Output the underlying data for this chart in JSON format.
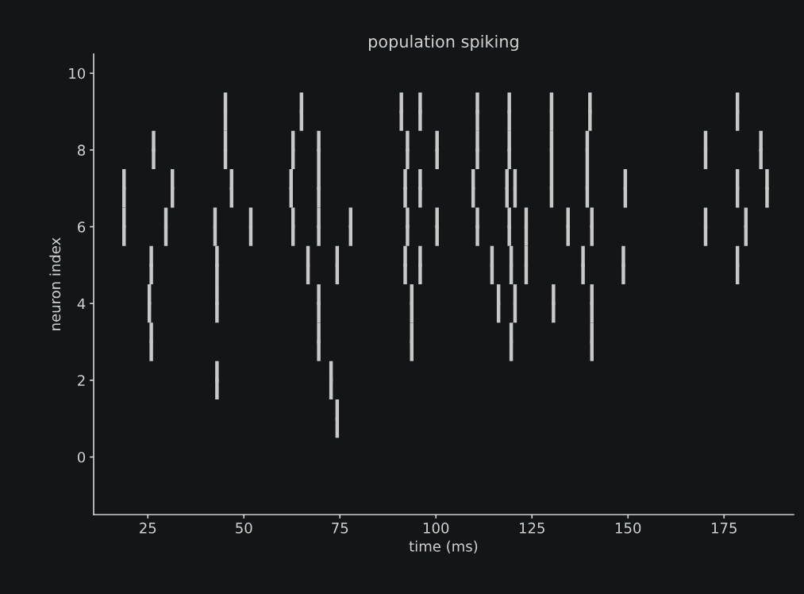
{
  "chart_data": {
    "type": "scatter",
    "title": "population spiking",
    "xlabel": "time (ms)",
    "ylabel": "neuron index",
    "xlim": [
      10.9,
      193.1
    ],
    "xticks": [
      25,
      50,
      75,
      100,
      125,
      150,
      175
    ],
    "ylim": [
      -1.5,
      10.5
    ],
    "yticks": [
      0,
      2,
      4,
      6,
      8,
      10
    ],
    "grid": false,
    "legend": false,
    "marker": "square",
    "series": [
      {
        "color": "#c8c8c8",
        "x": [
          18.8,
          18.8,
          25.4,
          25.9,
          25.9,
          26.5,
          29.7,
          31.4,
          42.5,
          43.0,
          43.0,
          43.0,
          45.2,
          45.2,
          46.8,
          51.8,
          62.3,
          62.8,
          62.8,
          65.0,
          66.7,
          69.5,
          69.5,
          69.5,
          69.5,
          69.5,
          72.7,
          74.3,
          74.3,
          77.8,
          91.0,
          92.0,
          92.0,
          92.6,
          92.6,
          93.7,
          93.7,
          95.9,
          95.9,
          95.9,
          100.3,
          100.3,
          109.7,
          110.8,
          110.8,
          110.8,
          114.6,
          116.3,
          118.5,
          119.1,
          119.1,
          119.1,
          119.6,
          119.6,
          120.6,
          120.6,
          123.5,
          123.5,
          130.1,
          130.1,
          130.1,
          130.6,
          134.4,
          138.3,
          139.4,
          139.4,
          140.1,
          140.6,
          140.6,
          140.6,
          148.8,
          149.3,
          170.2,
          170.2,
          178.5,
          178.5,
          178.5,
          180.7,
          184.6,
          186.2
        ],
        "values": [
          7,
          6,
          4,
          5,
          3,
          8,
          6,
          7,
          6,
          5,
          4,
          2,
          9,
          8,
          7,
          6,
          7,
          8,
          6,
          9,
          5,
          8,
          7,
          6,
          4,
          3,
          2,
          5,
          1,
          6,
          9,
          7,
          5,
          8,
          6,
          4,
          3,
          9,
          7,
          5,
          8,
          6,
          7,
          9,
          8,
          6,
          5,
          4,
          7,
          9,
          8,
          6,
          5,
          3,
          7,
          4,
          6,
          5,
          9,
          8,
          7,
          4,
          6,
          5,
          8,
          7,
          9,
          6,
          4,
          3,
          5,
          7,
          8,
          6,
          9,
          7,
          5,
          6,
          8,
          7
        ],
        "errors": [
          0.5,
          0.5,
          0.5,
          0.5,
          0.5,
          0.5,
          0.5,
          0.5,
          0.5,
          0.5,
          0.5,
          0.5,
          0.5,
          0.5,
          0.5,
          0.5,
          0.5,
          0.5,
          0.5,
          0.5,
          0.5,
          0.5,
          0.5,
          0.5,
          0.5,
          0.5,
          0.5,
          0.5,
          0.5,
          0.5,
          0.5,
          0.5,
          0.5,
          0.5,
          0.5,
          0.5,
          0.5,
          0.5,
          0.5,
          0.5,
          0.5,
          0.5,
          0.5,
          0.5,
          0.5,
          0.5,
          0.5,
          0.5,
          0.5,
          0.5,
          0.5,
          0.5,
          0.5,
          0.5,
          0.5,
          0.5,
          0.5,
          0.5,
          0.5,
          0.5,
          0.5,
          0.5,
          0.5,
          0.5,
          0.5,
          0.5,
          0.5,
          0.5,
          0.5,
          0.5,
          0.5,
          0.5,
          0.5,
          0.5,
          0.5,
          0.5,
          0.5,
          0.5,
          0.5,
          0.5
        ]
      }
    ]
  }
}
